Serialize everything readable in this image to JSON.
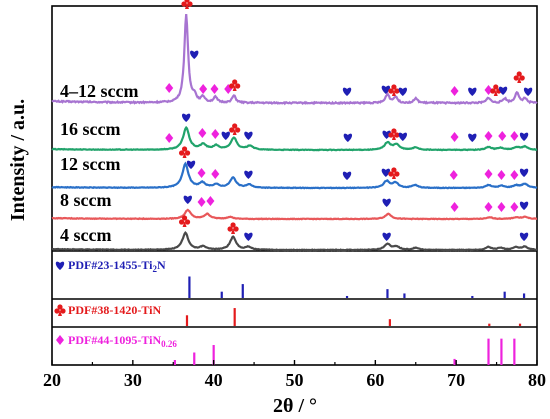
{
  "chart_data": {
    "type": "line",
    "xlabel": "2θ / °",
    "ylabel": "Intensity / a.u.",
    "xlim": [
      20,
      80
    ],
    "x_ticks": [
      "20",
      "30",
      "40",
      "50",
      "60",
      "70",
      "80"
    ],
    "grid": false,
    "colors": {
      "ti2n": "#1f1fb4",
      "tin": "#e41a1c",
      "tin026": "#ee22dd"
    },
    "series": [
      {
        "name": "4–12 sccm",
        "color": "#a774d1",
        "peaks": [
          [
            36.6,
            1.0
          ],
          [
            37.6,
            0.07
          ],
          [
            38.7,
            0.06
          ],
          [
            40.2,
            0.06
          ],
          [
            42.5,
            0.08
          ],
          [
            61.5,
            0.1
          ],
          [
            62.5,
            0.07
          ],
          [
            65.0,
            0.05
          ],
          [
            74.0,
            0.06
          ],
          [
            76.0,
            0.05
          ],
          [
            77.5,
            0.12
          ],
          [
            78.5,
            0.05
          ]
        ]
      },
      {
        "name": "16 sccm",
        "color": "#21a36b",
        "peaks": [
          [
            36.6,
            0.55
          ],
          [
            38.7,
            0.13
          ],
          [
            40.3,
            0.1
          ],
          [
            42.5,
            0.3
          ],
          [
            44.5,
            0.1
          ],
          [
            61.5,
            0.18
          ],
          [
            62.6,
            0.13
          ],
          [
            65.0,
            0.06
          ],
          [
            74.0,
            0.07
          ],
          [
            75.5,
            0.05
          ],
          [
            77.5,
            0.06
          ],
          [
            78.5,
            0.08
          ]
        ]
      },
      {
        "name": "12 sccm",
        "color": "#2a70c8",
        "peaks": [
          [
            36.5,
            0.6
          ],
          [
            38.6,
            0.12
          ],
          [
            40.3,
            0.08
          ],
          [
            42.4,
            0.25
          ],
          [
            44.4,
            0.08
          ],
          [
            61.4,
            0.17
          ],
          [
            62.5,
            0.12
          ],
          [
            64.9,
            0.07
          ],
          [
            74.0,
            0.07
          ],
          [
            75.6,
            0.05
          ],
          [
            77.4,
            0.06
          ],
          [
            78.5,
            0.1
          ]
        ]
      },
      {
        "name": "8 sccm",
        "color": "#e8585a",
        "peaks": [
          [
            36.8,
            0.22
          ],
          [
            39.2,
            0.12
          ],
          [
            42.0,
            0.05
          ],
          [
            61.6,
            0.13
          ],
          [
            74.2,
            0.04
          ],
          [
            77.4,
            0.04
          ],
          [
            78.5,
            0.05
          ]
        ]
      },
      {
        "name": "4 sccm",
        "color": "#4a4a4a",
        "peaks": [
          [
            36.5,
            0.42
          ],
          [
            38.7,
            0.08
          ],
          [
            42.4,
            0.32
          ],
          [
            44.3,
            0.07
          ],
          [
            61.5,
            0.15
          ],
          [
            62.6,
            0.08
          ],
          [
            65.0,
            0.05
          ],
          [
            74.0,
            0.07
          ],
          [
            75.5,
            0.05
          ],
          [
            77.4,
            0.06
          ],
          [
            78.5,
            0.08
          ]
        ]
      }
    ],
    "references": [
      {
        "name": "PDF#23-1455-Ti",
        "sub": "2",
        "tail": "N",
        "marker": "heart",
        "color": "#1f1fb4",
        "lines": [
          [
            37.0,
            0.85
          ],
          [
            41.0,
            0.25
          ],
          [
            43.6,
            0.55
          ],
          [
            56.5,
            0.08
          ],
          [
            61.5,
            0.35
          ],
          [
            63.6,
            0.18
          ],
          [
            72.0,
            0.08
          ],
          [
            76.0,
            0.25
          ],
          [
            78.4,
            0.18
          ]
        ]
      },
      {
        "name": "PDF#38-1420-TiN",
        "sub": "",
        "tail": "",
        "marker": "club",
        "color": "#e41a1c",
        "lines": [
          [
            36.7,
            0.55
          ],
          [
            42.6,
            0.92
          ],
          [
            61.8,
            0.35
          ],
          [
            74.1,
            0.12
          ],
          [
            77.9,
            0.12
          ]
        ]
      },
      {
        "name": "PDF#44-1095-TiN",
        "sub": "0.26",
        "tail": "",
        "marker": "diamond",
        "color": "#ee22dd",
        "lines": [
          [
            35.2,
            0.18
          ],
          [
            37.6,
            0.45
          ],
          [
            40.0,
            0.72
          ],
          [
            69.8,
            0.22
          ],
          [
            74.0,
            0.95
          ],
          [
            75.6,
            0.95
          ],
          [
            77.2,
            0.95
          ]
        ]
      }
    ]
  }
}
